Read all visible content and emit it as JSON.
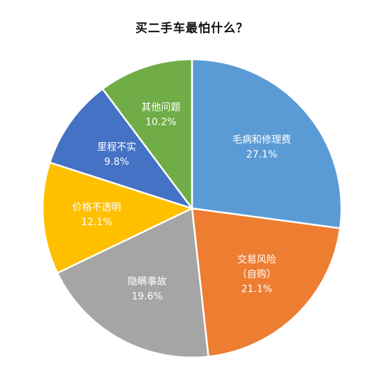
{
  "chart_data": {
    "type": "pie",
    "title": "买二手车最怕什么？",
    "start_angle_deg": 0,
    "direction": "clockwise",
    "slices": [
      {
        "label": "毛病和修理费",
        "value": 27.1,
        "value_label": "27.1%",
        "color": "#5B9BD5"
      },
      {
        "label": "交易风险",
        "sublabel": "（自购）",
        "value": 21.1,
        "value_label": "21.1%",
        "color": "#ED7D31"
      },
      {
        "label": "隐瞒事故",
        "value": 19.6,
        "value_label": "19.6%",
        "color": "#A5A5A5"
      },
      {
        "label": "价格不透明",
        "value": 12.1,
        "value_label": "12.1%",
        "color": "#FFC000"
      },
      {
        "label": "里程不实",
        "value": 9.8,
        "value_label": "9.8%",
        "color": "#4472C4"
      },
      {
        "label": "其他问题",
        "value": 10.2,
        "value_label": "10.2%",
        "color": "#70AD47"
      }
    ]
  }
}
